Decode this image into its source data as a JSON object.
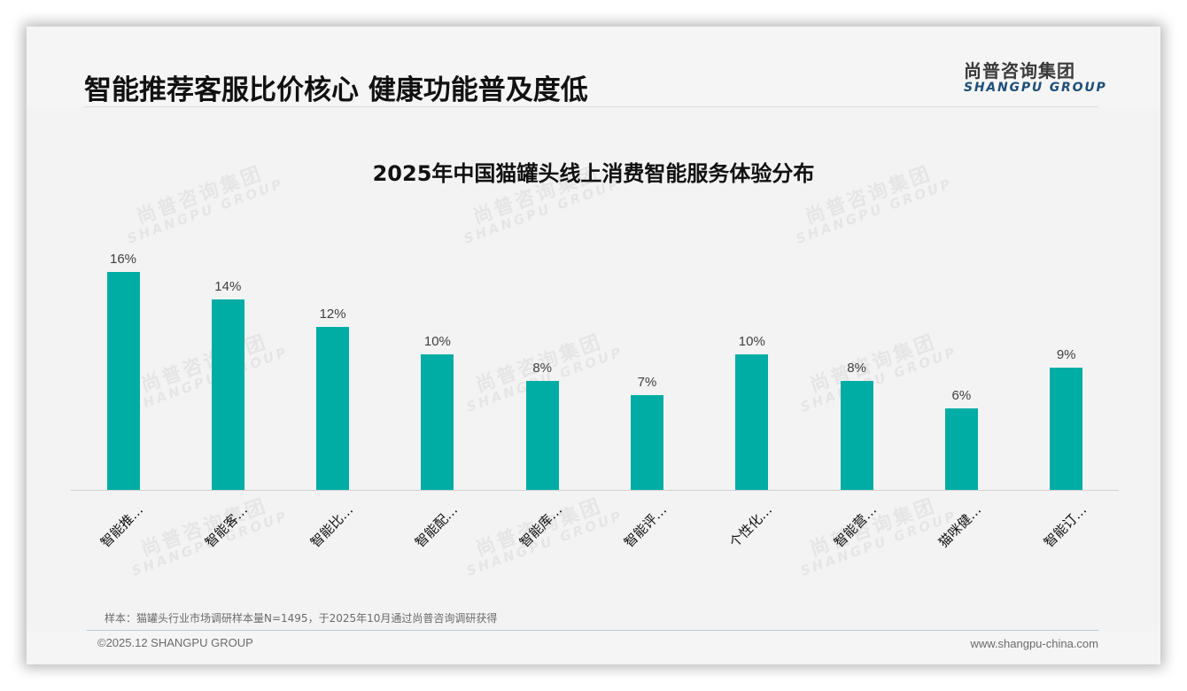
{
  "header": {
    "title": "智能推荐客服比价核心 健康功能普及度低",
    "logo_cn": "尚普咨询集团",
    "logo_en": "SHANGPU GROUP"
  },
  "watermark": {
    "cn": "尚普咨询集团",
    "en": "SHANGPU GROUP"
  },
  "colors": {
    "bar": "#00ada5",
    "logo_en": "#1f4e79"
  },
  "chart_data": {
    "type": "bar",
    "title": "2025年中国猫罐头线上消费智能服务体验分布",
    "categories": [
      "智能推…",
      "智能客…",
      "智能比…",
      "智能配…",
      "智能库…",
      "智能评…",
      "个性化…",
      "智能营…",
      "猫咪健…",
      "智能订…"
    ],
    "values": [
      16,
      14,
      12,
      10,
      8,
      7,
      10,
      8,
      6,
      9
    ],
    "value_labels": [
      "16%",
      "14%",
      "12%",
      "10%",
      "8%",
      "7%",
      "10%",
      "8%",
      "6%",
      "9%"
    ],
    "unit": "%",
    "xlabel": "",
    "ylabel": "",
    "ylim": [
      0,
      16
    ],
    "grid": false,
    "legend": "none",
    "axis_y_visible": false
  },
  "footer": {
    "note": "样本：猫罐头行业市场调研样本量N=1495，于2025年10月通过尚普咨询调研获得",
    "copyright": "©2025.12 SHANGPU GROUP",
    "website": "www.shangpu-china.com"
  }
}
